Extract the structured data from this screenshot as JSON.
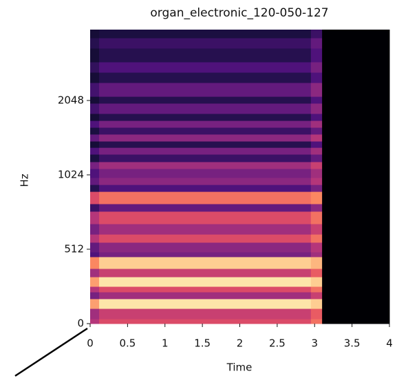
{
  "chart_data": {
    "type": "heatmap",
    "title": "organ_electronic_120-050-127",
    "x_label": "Time",
    "y_label": "Hz",
    "colormap": "magma",
    "vlim": [
      0,
      1
    ],
    "yscale": "symlog",
    "linthresh": 512,
    "xlim": [
      0,
      4
    ],
    "xticks": [
      0,
      0.5,
      1,
      1.5,
      2,
      2.5,
      3,
      3.5,
      4
    ],
    "ylim": [
      0,
      3965
    ],
    "yticks": [
      0,
      512,
      1024,
      2048
    ],
    "x_edges": [
      0,
      0.12,
      2.95,
      3.1,
      4
    ],
    "y_edges": [
      0,
      33,
      104,
      171,
      218,
      256,
      322,
      379,
      460,
      493,
      546,
      589,
      649,
      729,
      782,
      877,
      935,
      998,
      1085,
      1157,
      1241,
      1322,
      1402,
      1496,
      1594,
      1699,
      1813,
      1996,
      2127,
      2419,
      2663,
      2933,
      3334,
      3671,
      3965
    ],
    "z": [
      [
        0.5,
        0.6,
        0.7,
        0
      ],
      [
        0.45,
        0.55,
        0.65,
        0
      ],
      [
        0.8,
        0.95,
        0.9,
        0
      ],
      [
        0.35,
        0.45,
        0.55,
        0
      ],
      [
        0.5,
        0.6,
        0.7,
        0
      ],
      [
        0.8,
        0.95,
        0.9,
        0
      ],
      [
        0.45,
        0.55,
        0.65,
        0
      ],
      [
        0.75,
        0.9,
        0.85,
        0
      ],
      [
        0.25,
        0.35,
        0.45,
        0
      ],
      [
        0.3,
        0.4,
        0.5,
        0
      ],
      [
        0.5,
        0.6,
        0.7,
        0
      ],
      [
        0.35,
        0.45,
        0.55,
        0
      ],
      [
        0.5,
        0.6,
        0.7,
        0
      ],
      [
        0.2,
        0.3,
        0.4,
        0
      ],
      [
        0.6,
        0.7,
        0.75,
        0
      ],
      [
        0.15,
        0.25,
        0.35,
        0
      ],
      [
        0.3,
        0.4,
        0.5,
        0
      ],
      [
        0.25,
        0.35,
        0.45,
        0
      ],
      [
        0.35,
        0.45,
        0.55,
        0
      ],
      [
        0.12,
        0.2,
        0.3,
        0
      ],
      [
        0.25,
        0.35,
        0.45,
        0
      ],
      [
        0.1,
        0.15,
        0.25,
        0
      ],
      [
        0.3,
        0.4,
        0.5,
        0
      ],
      [
        0.12,
        0.2,
        0.3,
        0
      ],
      [
        0.25,
        0.35,
        0.45,
        0
      ],
      [
        0.1,
        0.15,
        0.25,
        0
      ],
      [
        0.22,
        0.3,
        0.4,
        0
      ],
      [
        0.1,
        0.15,
        0.25,
        0
      ],
      [
        0.22,
        0.3,
        0.4,
        0
      ],
      [
        0.1,
        0.15,
        0.25,
        0
      ],
      [
        0.18,
        0.25,
        0.35,
        0
      ],
      [
        0.1,
        0.15,
        0.25,
        0
      ],
      [
        0.15,
        0.2,
        0.3,
        0
      ],
      [
        0.1,
        0.12,
        0.2,
        0
      ]
    ]
  }
}
